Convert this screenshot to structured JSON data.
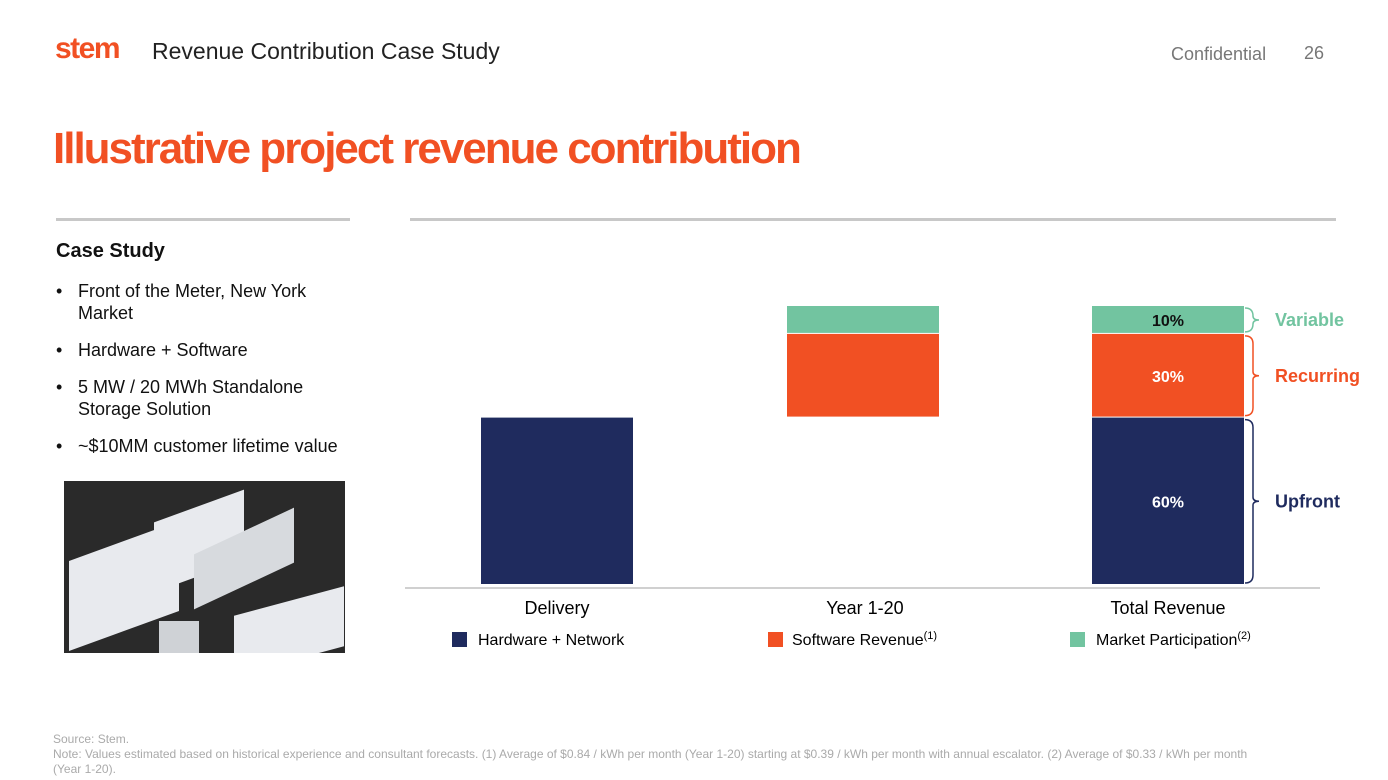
{
  "header": {
    "logo": "stem",
    "section": "Revenue Contribution Case Study",
    "confidential": "Confidential",
    "page_number": "26"
  },
  "title": "Illustrative project revenue contribution",
  "case_study": {
    "title": "Case Study",
    "bullets": [
      "Front of the Meter, New York Market",
      "Hardware + Software",
      "5 MW / 20 MWh Standalone Storage Solution",
      "~$10MM customer lifetime value"
    ]
  },
  "colors": {
    "hardware": "#1f2b5e",
    "software": "#f15023",
    "market": "#72c4a0",
    "accent": "#f15023"
  },
  "chart_data": {
    "type": "bar",
    "subtype": "stacked-waterfall",
    "categories": [
      "Delivery",
      "Year 1-20",
      "Total Revenue"
    ],
    "series": [
      {
        "name": "Hardware + Network",
        "footnote": "",
        "values": [
          60,
          0,
          60
        ],
        "color": "#1f2b5e"
      },
      {
        "name": "Software Revenue",
        "footnote": "(1)",
        "values": [
          0,
          30,
          30
        ],
        "color": "#f15023"
      },
      {
        "name": "Market Participation",
        "footnote": "(2)",
        "values": [
          0,
          10,
          10
        ],
        "color": "#72c4a0"
      }
    ],
    "offsets": [
      0,
      60,
      0
    ],
    "data_labels": {
      "Total Revenue": [
        "60%",
        "30%",
        "10%"
      ]
    },
    "brackets": [
      {
        "label": "Upfront",
        "color": "#1f2b5e"
      },
      {
        "label": "Recurring",
        "color": "#f15023"
      },
      {
        "label": "Variable",
        "color": "#72c4a0"
      }
    ],
    "ylim": [
      0,
      100
    ],
    "legend": "bottom"
  },
  "footer": {
    "source": "Source: Stem.",
    "note": "Note: Values estimated based on historical experience and consultant forecasts. (1) Average of $0.84 / kWh per month (Year 1-20) starting at $0.39 / kWh per month with annual escalator. (2) Average of $0.33 / kWh per month",
    "note_cont": "(Year 1-20)."
  }
}
